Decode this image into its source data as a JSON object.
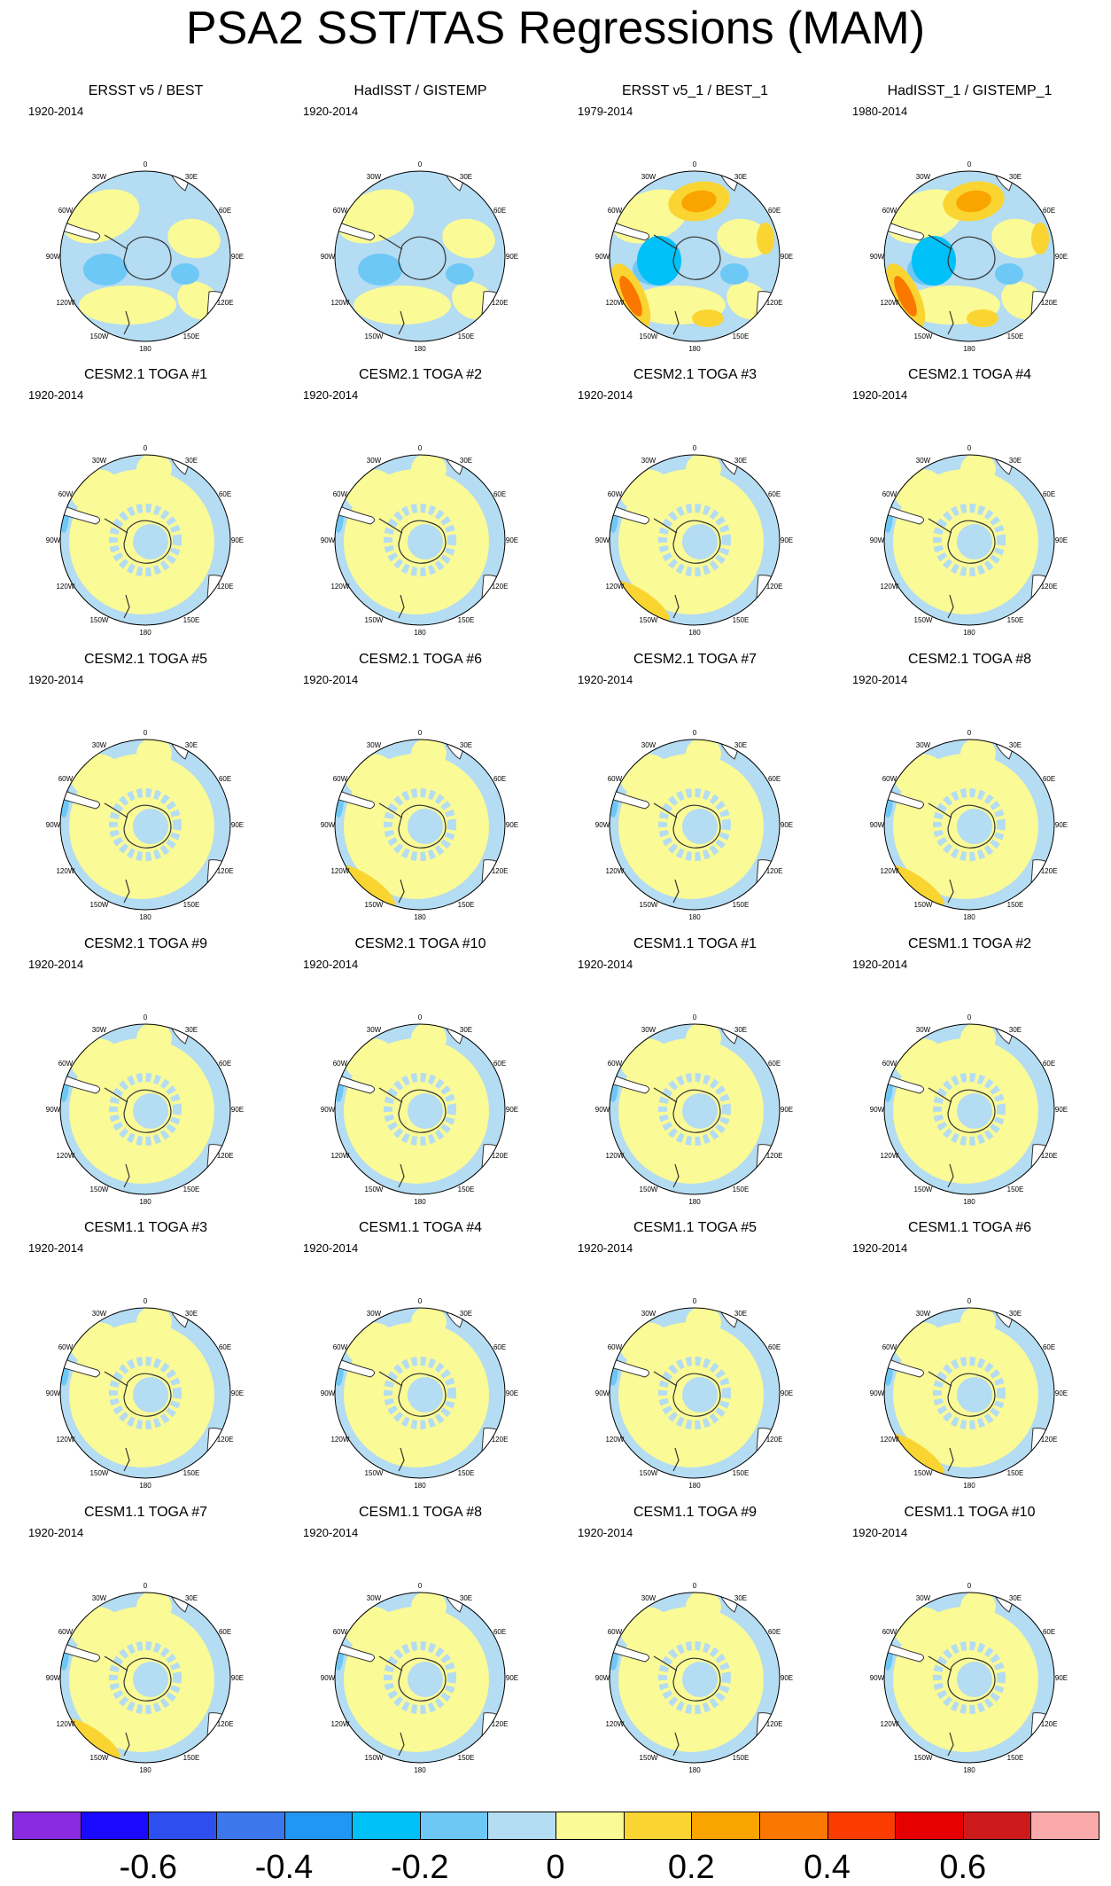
{
  "title": "PSA2 SST/TAS Regressions (MAM)",
  "lon_labels": [
    "0",
    "30E",
    "60E",
    "90E",
    "120E",
    "150E",
    "180",
    "150W",
    "120W",
    "90W",
    "60W",
    "30W"
  ],
  "panels": [
    {
      "title": "ERSST v5 / BEST",
      "period": "1920-2014",
      "pattern": "obs"
    },
    {
      "title": "HadISST / GISTEMP",
      "period": "1920-2014",
      "pattern": "obs"
    },
    {
      "title": "ERSST v5_1 / BEST_1",
      "period": "1979-2014",
      "pattern": "obs-strong"
    },
    {
      "title": "HadISST_1 / GISTEMP_1",
      "period": "1980-2014",
      "pattern": "obs-strong"
    },
    {
      "title": "CESM2.1 TOGA #1",
      "period": "1920-2014",
      "pattern": "model"
    },
    {
      "title": "CESM2.1 TOGA #2",
      "period": "1920-2014",
      "pattern": "model"
    },
    {
      "title": "CESM2.1 TOGA #3",
      "period": "1920-2014",
      "pattern": "model-warm"
    },
    {
      "title": "CESM2.1 TOGA #4",
      "period": "1920-2014",
      "pattern": "model"
    },
    {
      "title": "CESM2.1 TOGA #5",
      "period": "1920-2014",
      "pattern": "model"
    },
    {
      "title": "CESM2.1 TOGA #6",
      "period": "1920-2014",
      "pattern": "model-warm"
    },
    {
      "title": "CESM2.1 TOGA #7",
      "period": "1920-2014",
      "pattern": "model"
    },
    {
      "title": "CESM2.1 TOGA #8",
      "period": "1920-2014",
      "pattern": "model-warm"
    },
    {
      "title": "CESM2.1 TOGA #9",
      "period": "1920-2014",
      "pattern": "model"
    },
    {
      "title": "CESM2.1 TOGA #10",
      "period": "1920-2014",
      "pattern": "model"
    },
    {
      "title": "CESM1.1 TOGA #1",
      "period": "1920-2014",
      "pattern": "model"
    },
    {
      "title": "CESM1.1 TOGA #2",
      "period": "1920-2014",
      "pattern": "model"
    },
    {
      "title": "CESM1.1 TOGA #3",
      "period": "1920-2014",
      "pattern": "model"
    },
    {
      "title": "CESM1.1 TOGA #4",
      "period": "1920-2014",
      "pattern": "model"
    },
    {
      "title": "CESM1.1 TOGA #5",
      "period": "1920-2014",
      "pattern": "model"
    },
    {
      "title": "CESM1.1 TOGA #6",
      "period": "1920-2014",
      "pattern": "model-warm"
    },
    {
      "title": "CESM1.1 TOGA #7",
      "period": "1920-2014",
      "pattern": "model-warm"
    },
    {
      "title": "CESM1.1 TOGA #8",
      "period": "1920-2014",
      "pattern": "model"
    },
    {
      "title": "CESM1.1 TOGA #9",
      "period": "1920-2014",
      "pattern": "model"
    },
    {
      "title": "CESM1.1 TOGA #10",
      "period": "1920-2014",
      "pattern": "model"
    }
  ],
  "colorbar": {
    "colors": [
      "#8a2be2",
      "#1a0aff",
      "#2d4ff0",
      "#3c78eb",
      "#2196f3",
      "#00c0f8",
      "#6ec8f5",
      "#b4dcf2",
      "#fafa96",
      "#fad532",
      "#faa400",
      "#fa7800",
      "#fa3c00",
      "#e60000",
      "#cd1a1a",
      "#faaaaa"
    ],
    "tick_labels": [
      "-0.6",
      "-0.4",
      "-0.2",
      "0",
      "0.2",
      "0.4",
      "0.6"
    ],
    "tick_values": [
      -0.6,
      -0.4,
      -0.2,
      0,
      0.2,
      0.4,
      0.6
    ],
    "bounds": [
      -0.7,
      -0.6,
      -0.5,
      -0.4,
      -0.3,
      -0.2,
      -0.1,
      0,
      0.1,
      0.2,
      0.3,
      0.4,
      0.5,
      0.6,
      0.7
    ]
  },
  "colors": {
    "ocean_neutral_blue": "#b4dcf2",
    "ocean_neutral_yellow": "#fafa96",
    "cool": "#6ec8f5",
    "cooler": "#00c0f8",
    "warm": "#fad532",
    "warmer": "#faa400",
    "warmest": "#fa7800"
  }
}
